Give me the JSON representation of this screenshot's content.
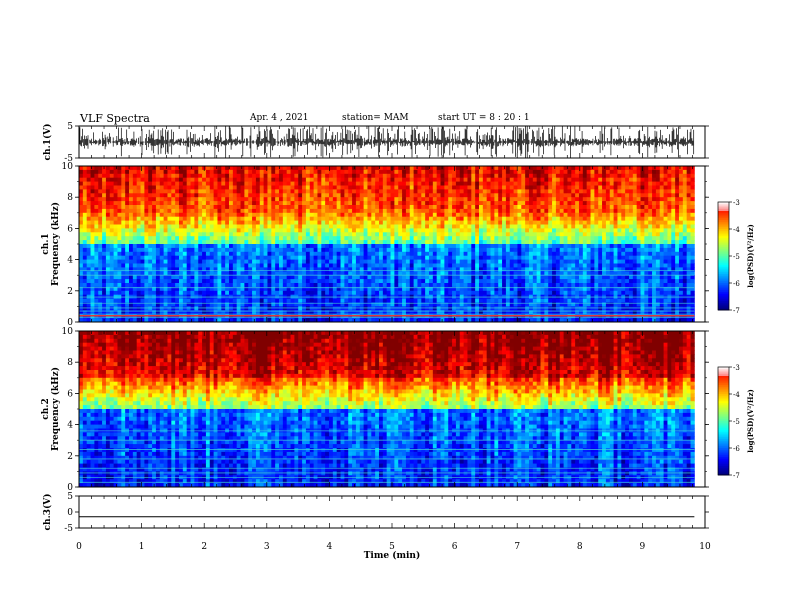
{
  "header": {
    "title": "VLF Spectra",
    "date": "Apr. 4  , 2021",
    "station": "station= MAM",
    "start": "start  UT  =   8  : 20 : 1"
  },
  "chart_data": [
    {
      "type": "line",
      "panel": "ch1-waveform",
      "ylabel": "ch.1(V)",
      "ylim": [
        -5,
        5
      ],
      "yticks": [
        "5",
        "-5"
      ],
      "description_of_signal": "impulsive spikes (sferics) spanning full range"
    },
    {
      "type": "heatmap",
      "panel": "ch1-spectrogram",
      "ylabel": "ch.1\nFrequency  (kHz)",
      "ylim": [
        0,
        10
      ],
      "yticks": [
        "0",
        "2",
        "4",
        "6",
        "8",
        "10"
      ],
      "colorbar": {
        "label": "log(PSD)(V²/Hz)",
        "range": [
          -7,
          -3
        ],
        "ticks": [
          "-3",
          "-4",
          "-5",
          "-6",
          "-7"
        ]
      }
    },
    {
      "type": "heatmap",
      "panel": "ch2-spectrogram",
      "ylabel": "ch.2\nFrequency  (kHz)",
      "ylim": [
        0,
        10
      ],
      "yticks": [
        "0",
        "2",
        "4",
        "6",
        "8",
        "10"
      ],
      "colorbar": {
        "label": "log(PSD)(V²/Hz)",
        "range": [
          -7,
          -3
        ],
        "ticks": [
          "-3",
          "-4",
          "-5",
          "-6",
          "-7"
        ]
      }
    },
    {
      "type": "line",
      "panel": "ch3-waveform",
      "ylabel": "ch.3(V)",
      "ylim": [
        -5,
        5
      ],
      "yticks": [
        "5",
        "0",
        "-5"
      ],
      "y_value": -1.5
    }
  ],
  "x_axis": {
    "label": "Time  (min)",
    "range": [
      0,
      10
    ],
    "ticks": [
      "0",
      "1",
      "2",
      "3",
      "4",
      "5",
      "6",
      "7",
      "8",
      "9",
      "10"
    ],
    "data_end": 9.83
  }
}
